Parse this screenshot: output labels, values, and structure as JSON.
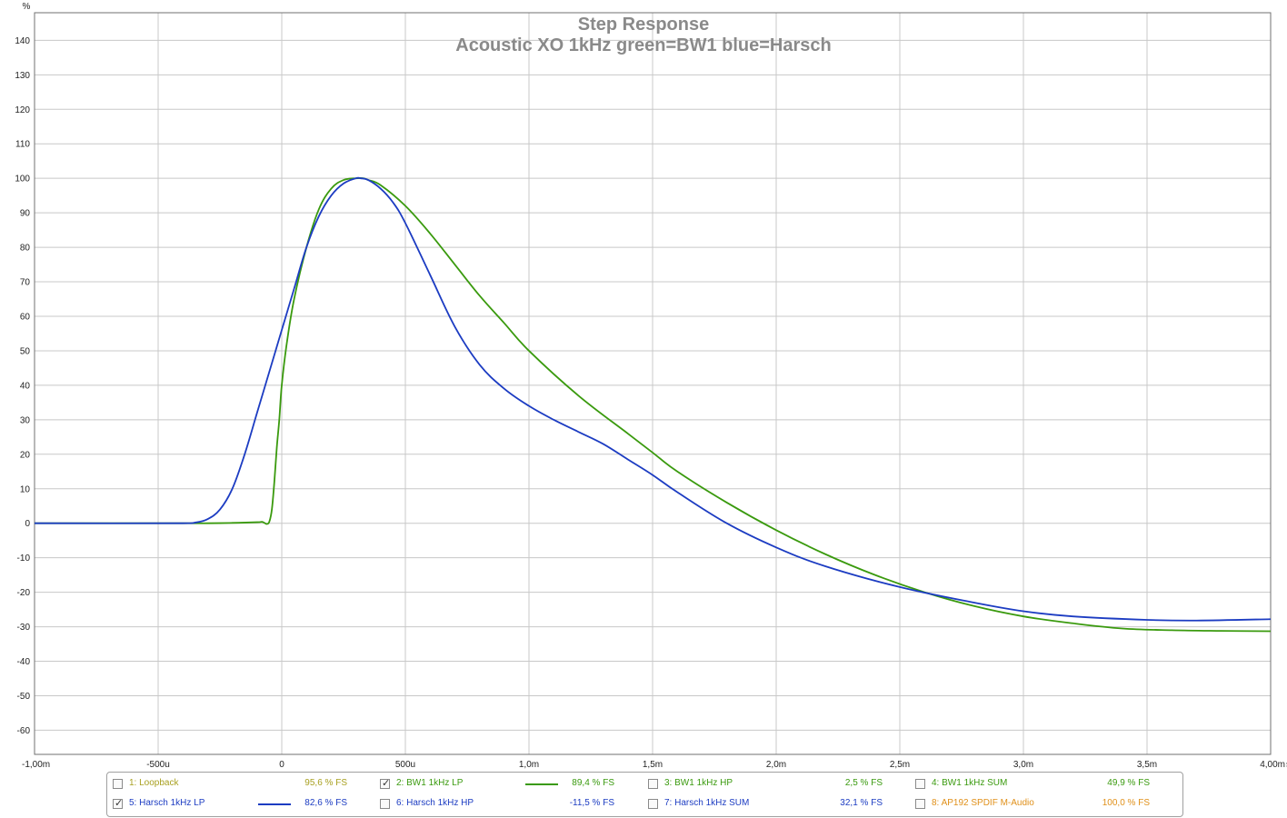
{
  "chart_data": {
    "type": "line",
    "title": "Step Response",
    "subtitle": "Acoustic XO 1kHz green=BW1 blue=Harsch",
    "ylabel": "%",
    "xunit": "s",
    "xlim": [
      -0.001,
      0.004
    ],
    "ylim": [
      -67,
      148
    ],
    "yticks": [
      140,
      130,
      120,
      110,
      100,
      90,
      80,
      70,
      60,
      50,
      40,
      30,
      20,
      10,
      0,
      -10,
      -20,
      -30,
      -40,
      -50,
      -60
    ],
    "xticks": [
      {
        "value": -0.001,
        "label": "-1,00m"
      },
      {
        "value": -0.0005,
        "label": "-500u"
      },
      {
        "value": 0,
        "label": "0"
      },
      {
        "value": 0.0005,
        "label": "500u"
      },
      {
        "value": 0.001,
        "label": "1,0m"
      },
      {
        "value": 0.0015,
        "label": "1,5m"
      },
      {
        "value": 0.002,
        "label": "2,0m"
      },
      {
        "value": 0.0025,
        "label": "2,5m"
      },
      {
        "value": 0.003,
        "label": "3,0m"
      },
      {
        "value": 0.0035,
        "label": "3,5m"
      },
      {
        "value": 0.004,
        "label": "4,00m"
      }
    ],
    "grid": true,
    "series": [
      {
        "name": "2: BW1 1kHz LP",
        "color": "#3a9a0e",
        "x": [
          -0.001,
          -0.0004,
          -0.0003,
          -0.0002,
          -0.0001,
          -8e-05,
          -7e-05,
          -6e-05,
          -5e-05,
          -4e-05,
          -3e-05,
          -2e-05,
          -1e-05,
          0,
          2e-05,
          5e-05,
          0.0001,
          0.00015,
          0.0002,
          0.00025,
          0.0003,
          0.00033,
          0.00035,
          0.0004,
          0.0005,
          0.0006,
          0.0007,
          0.0008,
          0.0009,
          0.001,
          0.0012,
          0.0014,
          0.0015,
          0.0016,
          0.0018,
          0.002,
          0.0022,
          0.0024,
          0.0026,
          0.0028,
          0.003,
          0.0032,
          0.0034,
          0.0036,
          0.0038,
          0.004
        ],
        "y": [
          0,
          0,
          0,
          0.1,
          0.3,
          0.4,
          0.1,
          -0.2,
          0.5,
          4,
          12,
          22,
          30,
          40,
          52,
          65,
          80,
          91,
          97,
          99.5,
          100,
          100,
          99.5,
          98,
          92,
          84,
          75,
          66,
          58,
          50,
          37,
          26,
          20.5,
          15,
          6,
          -2,
          -9,
          -15,
          -20,
          -24,
          -27,
          -29,
          -30.5,
          -31,
          -31.2,
          -31.3
        ]
      },
      {
        "name": "5: Harsch 1kHz LP",
        "color": "#1c3cc2",
        "x": [
          -0.001,
          -0.0004,
          -0.00035,
          -0.0003,
          -0.00025,
          -0.0002,
          -0.00015,
          -0.0001,
          -5e-05,
          0,
          5e-05,
          0.0001,
          0.00015,
          0.0002,
          0.00025,
          0.0003,
          0.00032,
          0.00035,
          0.0004,
          0.00045,
          0.0005,
          0.0006,
          0.0007,
          0.0008,
          0.0009,
          0.001,
          0.0011,
          0.0012,
          0.0013,
          0.0014,
          0.0015,
          0.0016,
          0.0018,
          0.002,
          0.0022,
          0.0025,
          0.0028,
          0.003,
          0.0032,
          0.0035,
          0.0037,
          0.004
        ],
        "y": [
          0,
          0,
          0.2,
          1.2,
          4,
          10,
          20,
          32,
          44,
          56,
          68,
          80,
          89,
          95,
          98.5,
          100,
          100,
          99.5,
          97,
          93,
          87,
          72,
          57,
          46,
          39,
          34,
          30,
          26.5,
          23,
          18.5,
          14,
          9,
          0,
          -7,
          -12.5,
          -18.5,
          -23,
          -25.5,
          -27,
          -28,
          -28.2,
          -27.8
        ]
      }
    ]
  },
  "legend": [
    {
      "label": "1: Loopback",
      "value": "95,6 % FS",
      "checked": false,
      "color": "#a8a020"
    },
    {
      "label": "2: BW1 1kHz LP",
      "value": "89,4 % FS",
      "checked": true,
      "color": "#3a9a0e"
    },
    {
      "label": "3: BW1 1kHz HP",
      "value": "2,5 % FS",
      "checked": false,
      "color": "#3a9a0e"
    },
    {
      "label": "4: BW1 1kHz SUM",
      "value": "49,9 % FS",
      "checked": false,
      "color": "#3a9a0e"
    },
    {
      "label": "5: Harsch 1kHz LP",
      "value": "82,6 % FS",
      "checked": true,
      "color": "#1c3cc2"
    },
    {
      "label": "6: Harsch 1kHz HP",
      "value": "-11,5 % FS",
      "checked": false,
      "color": "#1c3cc2"
    },
    {
      "label": "7: Harsch 1kHz SUM",
      "value": "32,1 % FS",
      "checked": false,
      "color": "#1c3cc2"
    },
    {
      "label": "8: AP192 SPDIF M-Audio",
      "value": "100,0 % FS",
      "checked": false,
      "color": "#e0901a"
    }
  ],
  "colors": {
    "title": "#8a8a8a",
    "grid": "#c8c8c8",
    "axis_text": "#222222",
    "check": "✓"
  }
}
